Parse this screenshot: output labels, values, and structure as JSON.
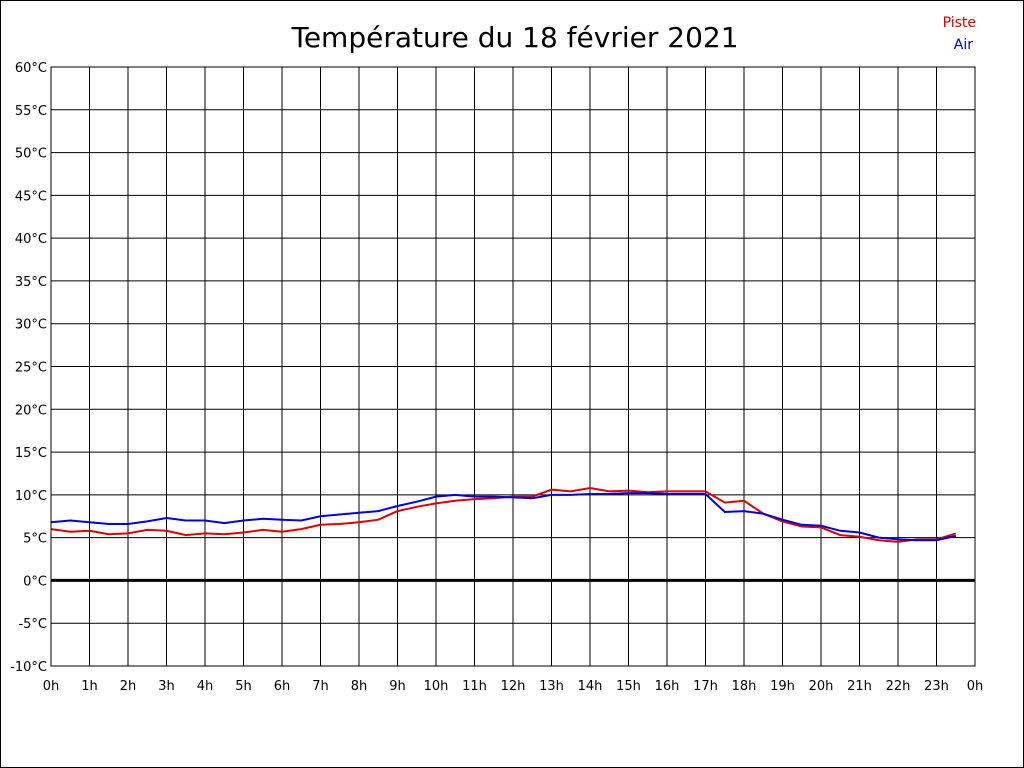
{
  "chart_data": {
    "type": "line",
    "title": "Température du 18 février 2021",
    "xlabel": "",
    "ylabel": "",
    "y_unit": "°C",
    "ylim": [
      -10,
      60
    ],
    "y_ticks": [
      60,
      55,
      50,
      45,
      40,
      35,
      30,
      25,
      20,
      15,
      10,
      5,
      0,
      -5,
      -10
    ],
    "y_tick_labels": [
      "60°C",
      "55°C",
      "50°C",
      "45°C",
      "40°C",
      "35°C",
      "30°C",
      "25°C",
      "20°C",
      "15°C",
      "10°C",
      "5°C",
      "0°C",
      "-5°C",
      "-10°C"
    ],
    "x_unit": "hour",
    "xlim": [
      0,
      24
    ],
    "x_ticks": [
      0,
      1,
      2,
      3,
      4,
      5,
      6,
      7,
      8,
      9,
      10,
      11,
      12,
      13,
      14,
      15,
      16,
      17,
      18,
      19,
      20,
      21,
      22,
      23,
      24
    ],
    "x_tick_labels": [
      "0h",
      "1h",
      "2h",
      "3h",
      "4h",
      "5h",
      "6h",
      "7h",
      "8h",
      "9h",
      "10h",
      "11h",
      "12h",
      "13h",
      "14h",
      "15h",
      "16h",
      "17h",
      "18h",
      "19h",
      "20h",
      "21h",
      "22h",
      "23h",
      "0h"
    ],
    "grid": true,
    "zero_line": true,
    "legend_position": "top-right",
    "series": [
      {
        "name": "Piste",
        "color": "#e00000",
        "x": [
          0,
          0.5,
          1,
          1.5,
          2,
          2.5,
          3,
          3.5,
          4,
          4.5,
          5,
          5.5,
          6,
          6.5,
          7,
          7.5,
          8,
          8.5,
          9,
          9.5,
          10,
          10.5,
          11,
          11.5,
          12,
          12.5,
          13,
          13.5,
          14,
          14.5,
          15,
          15.5,
          16,
          16.5,
          17,
          17.5,
          18,
          18.5,
          19,
          19.5,
          20,
          20.5,
          21,
          21.5,
          22,
          22.5,
          23,
          23.5
        ],
        "values": [
          6.0,
          5.7,
          5.8,
          5.4,
          5.5,
          5.9,
          5.8,
          5.3,
          5.5,
          5.4,
          5.6,
          5.9,
          5.7,
          6.0,
          6.5,
          6.6,
          6.8,
          7.1,
          8.1,
          8.6,
          9.0,
          9.3,
          9.5,
          9.6,
          9.8,
          9.8,
          10.6,
          10.4,
          10.8,
          10.4,
          10.5,
          10.3,
          10.4,
          10.4,
          10.4,
          9.1,
          9.3,
          7.8,
          6.9,
          6.3,
          6.2,
          5.3,
          5.1,
          4.7,
          4.5,
          4.8,
          4.8,
          5.5
        ]
      },
      {
        "name": "Air",
        "color": "#0000e0",
        "x": [
          0,
          0.5,
          1,
          1.5,
          2,
          2.5,
          3,
          3.5,
          4,
          4.5,
          5,
          5.5,
          6,
          6.5,
          7,
          7.5,
          8,
          8.5,
          9,
          9.5,
          10,
          10.5,
          11,
          11.5,
          12,
          12.5,
          13,
          13.5,
          14,
          14.5,
          15,
          15.5,
          16,
          16.5,
          17,
          17.5,
          18,
          18.5,
          19,
          19.5,
          20,
          20.5,
          21,
          21.5,
          22,
          22.5,
          23,
          23.5
        ],
        "values": [
          6.8,
          7.0,
          6.8,
          6.6,
          6.6,
          6.9,
          7.3,
          7.0,
          7.0,
          6.7,
          7.0,
          7.2,
          7.1,
          7.0,
          7.5,
          7.7,
          7.9,
          8.1,
          8.7,
          9.2,
          9.8,
          10.0,
          9.8,
          9.8,
          9.7,
          9.6,
          10.0,
          10.0,
          10.1,
          10.1,
          10.2,
          10.2,
          10.1,
          10.1,
          10.1,
          8.0,
          8.1,
          7.8,
          7.1,
          6.5,
          6.4,
          5.8,
          5.6,
          5.0,
          4.8,
          4.7,
          4.7,
          5.2
        ]
      }
    ]
  }
}
